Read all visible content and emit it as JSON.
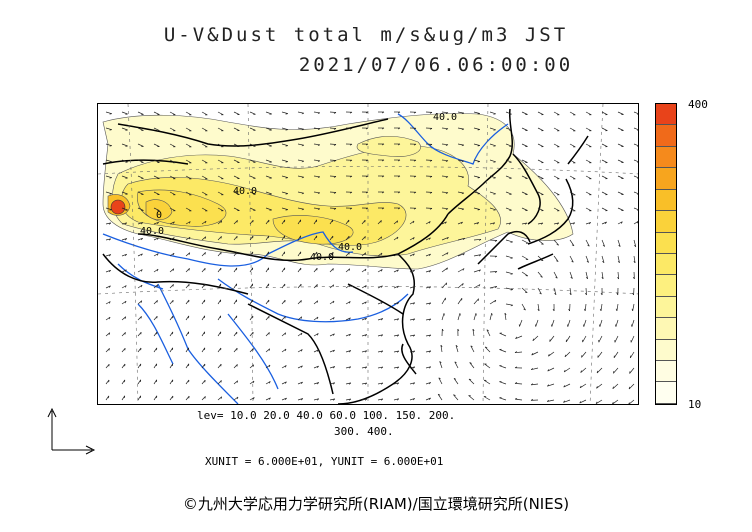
{
  "title_line1": "U-V&Dust total m/s&ug/m3 JST",
  "title_line2": "2021/07/06.06:00:00",
  "colorbar": {
    "max_label": "400",
    "min_label": "10",
    "colors": [
      "#e8431a",
      "#f06a1a",
      "#f58a1c",
      "#f7a51e",
      "#f9bf28",
      "#fad23a",
      "#fbe04f",
      "#fce966",
      "#fdf07f",
      "#fdf59a",
      "#fef8b4",
      "#fefbcc",
      "#fffde2",
      "#fffff0"
    ]
  },
  "levels_line1": "lev= 10.0 20.0 40.0 60.0 100. 150. 200.",
  "levels_line2": "300. 400.",
  "units_line": "XUNIT = 6.000E+01, YUNIT = 6.000E+01",
  "credit": "©九州大学応用力学研究所(RIAM)/国立環境研究所(NIES)",
  "contour_labels": [
    "40.0",
    "40.0",
    "40.0",
    "40.0",
    "40.0",
    "0"
  ]
}
